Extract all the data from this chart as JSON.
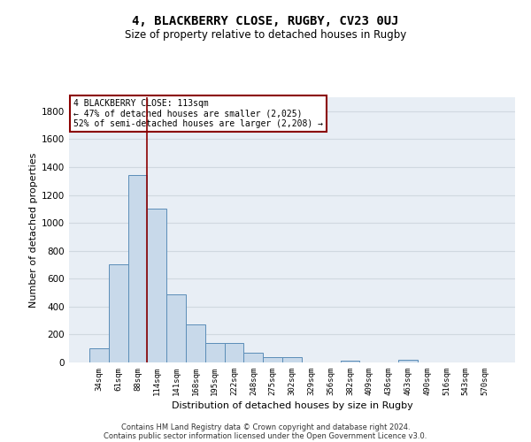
{
  "title_line1": "4, BLACKBERRY CLOSE, RUGBY, CV23 0UJ",
  "title_line2": "Size of property relative to detached houses in Rugby",
  "xlabel": "Distribution of detached houses by size in Rugby",
  "ylabel": "Number of detached properties",
  "bar_labels": [
    "34sqm",
    "61sqm",
    "88sqm",
    "114sqm",
    "141sqm",
    "168sqm",
    "195sqm",
    "222sqm",
    "248sqm",
    "275sqm",
    "302sqm",
    "329sqm",
    "356sqm",
    "382sqm",
    "409sqm",
    "436sqm",
    "463sqm",
    "490sqm",
    "516sqm",
    "543sqm",
    "570sqm"
  ],
  "bar_values": [
    100,
    700,
    1340,
    1100,
    490,
    270,
    140,
    140,
    70,
    35,
    35,
    0,
    0,
    15,
    0,
    0,
    20,
    0,
    0,
    0,
    0
  ],
  "bar_color": "#c8d9ea",
  "bar_edge_color": "#5b8db8",
  "vline_color": "#8b0000",
  "vline_x": 2.5,
  "annotation_text": "4 BLACKBERRY CLOSE: 113sqm\n← 47% of detached houses are smaller (2,025)\n52% of semi-detached houses are larger (2,208) →",
  "annotation_box_color": "#ffffff",
  "annotation_box_edge_color": "#8b0000",
  "ylim": [
    0,
    1900
  ],
  "yticks": [
    0,
    200,
    400,
    600,
    800,
    1000,
    1200,
    1400,
    1600,
    1800
  ],
  "grid_color": "#d0d8e0",
  "bg_color": "#e8eef5",
  "footer_line1": "Contains HM Land Registry data © Crown copyright and database right 2024.",
  "footer_line2": "Contains public sector information licensed under the Open Government Licence v3.0."
}
